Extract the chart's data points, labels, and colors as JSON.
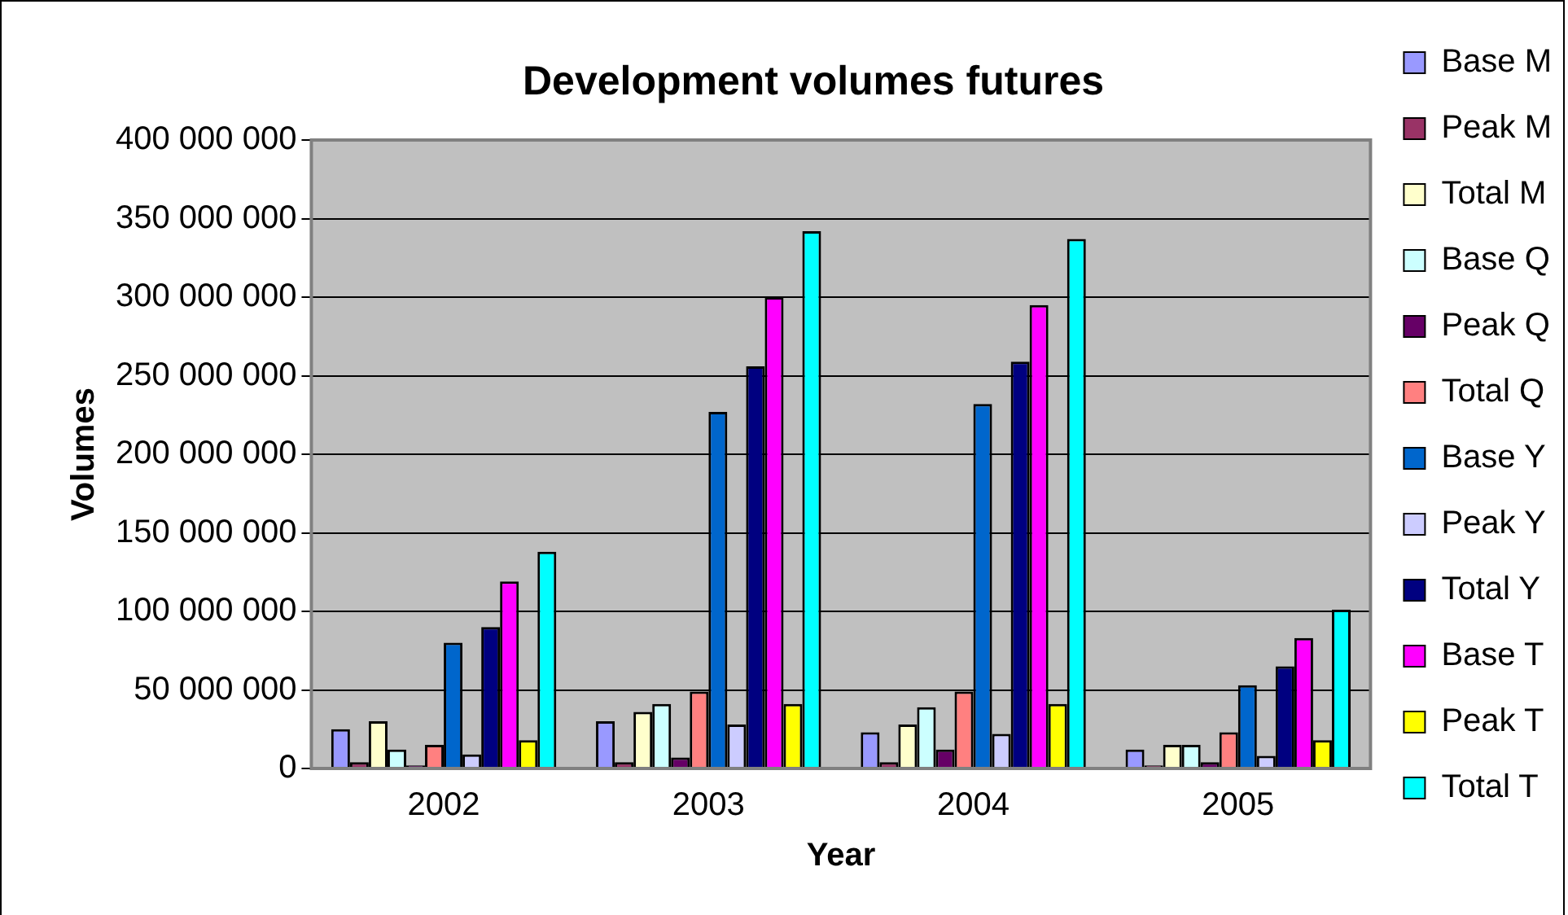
{
  "chart_data": {
    "type": "bar",
    "title": "Development volumes futures",
    "xlabel": "Year",
    "ylabel": "Volumes",
    "categories": [
      "2002",
      "2003",
      "2004",
      "2005"
    ],
    "series": [
      {
        "name": "Base M",
        "color": "#9999ff",
        "values": [
          25000000,
          30000000,
          23000000,
          12000000
        ]
      },
      {
        "name": "Peak M",
        "color": "#993366",
        "values": [
          4000000,
          4000000,
          4000000,
          2000000
        ]
      },
      {
        "name": "Total M",
        "color": "#ffffcc",
        "values": [
          30000000,
          36000000,
          28000000,
          15000000
        ]
      },
      {
        "name": "Base Q",
        "color": "#ccffff",
        "values": [
          12000000,
          41000000,
          39000000,
          15000000
        ]
      },
      {
        "name": "Peak Q",
        "color": "#660066",
        "values": [
          2000000,
          7000000,
          12000000,
          4000000
        ]
      },
      {
        "name": "Total Q",
        "color": "#ff8080",
        "values": [
          15000000,
          49000000,
          49000000,
          23000000
        ]
      },
      {
        "name": "Base Y",
        "color": "#0066cc",
        "values": [
          80000000,
          227000000,
          232000000,
          53000000
        ]
      },
      {
        "name": "Peak Y",
        "color": "#ccccff",
        "values": [
          9000000,
          28000000,
          22000000,
          8000000
        ]
      },
      {
        "name": "Total Y",
        "color": "#000080",
        "values": [
          90000000,
          256000000,
          259000000,
          65000000
        ]
      },
      {
        "name": "Base T",
        "color": "#ff00ff",
        "values": [
          119000000,
          300000000,
          295000000,
          83000000
        ]
      },
      {
        "name": "Peak T",
        "color": "#ffff00",
        "values": [
          18000000,
          41000000,
          41000000,
          18000000
        ]
      },
      {
        "name": "Total T",
        "color": "#00ffff",
        "values": [
          138000000,
          342000000,
          337000000,
          101000000
        ]
      }
    ],
    "ylim": [
      0,
      400000000
    ],
    "yticks": [
      {
        "value": 0,
        "label": "0"
      },
      {
        "value": 50000000,
        "label": "50 000 000"
      },
      {
        "value": 100000000,
        "label": "100 000 000"
      },
      {
        "value": 150000000,
        "label": "150 000 000"
      },
      {
        "value": 200000000,
        "label": "200 000 000"
      },
      {
        "value": 250000000,
        "label": "250 000 000"
      },
      {
        "value": 300000000,
        "label": "300 000 000"
      },
      {
        "value": 350000000,
        "label": "350 000 000"
      },
      {
        "value": 400000000,
        "label": "400 000 000"
      }
    ],
    "grid": "y",
    "legend": "right"
  }
}
